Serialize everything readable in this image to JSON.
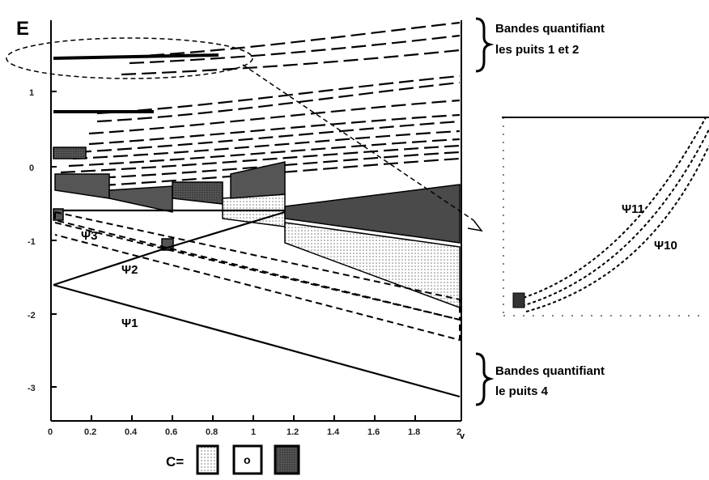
{
  "y_axis_label": "E",
  "x_axis_label": "v",
  "x_ticks": [
    "0",
    "0.2",
    "0.4",
    "0.6",
    "0.8",
    "1",
    "1.2",
    "1.4",
    "1.6",
    "1.8",
    "2"
  ],
  "y_ticks": [
    "1",
    "0",
    "-1",
    "-2",
    "-3"
  ],
  "wave_labels": {
    "psi1": "Ψ1",
    "psi2": "Ψ2",
    "psi3": "Ψ3",
    "psi10": "Ψ10",
    "psi11": "Ψ11"
  },
  "annotations": {
    "top_line1": "Bandes quantifiant",
    "top_line2": "les puits 1 et 2",
    "bottom_line1": "Bandes quantifiant",
    "bottom_line2": "le puits 4"
  },
  "legend": {
    "prefix": "C=",
    "center_symbol": "o"
  },
  "colors": {
    "line": "#000000",
    "dark_fill": "#3a3a3a",
    "mid_fill": "#8a8a8a",
    "light_fill": "#c9c9c9"
  }
}
